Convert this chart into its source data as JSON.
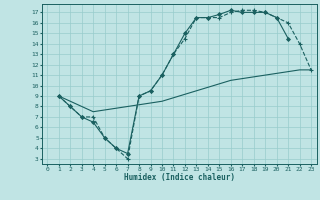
{
  "xlabel": "Humidex (Indice chaleur)",
  "bg_color": "#c0e4e4",
  "grid_color": "#98cccc",
  "line_color": "#1a6060",
  "xlim": [
    -0.5,
    23.5
  ],
  "ylim": [
    2.5,
    17.8
  ],
  "xticks": [
    0,
    1,
    2,
    3,
    4,
    5,
    6,
    7,
    8,
    9,
    10,
    11,
    12,
    13,
    14,
    15,
    16,
    17,
    18,
    19,
    20,
    21,
    22,
    23
  ],
  "yticks": [
    3,
    4,
    5,
    6,
    7,
    8,
    9,
    10,
    11,
    12,
    13,
    14,
    15,
    16,
    17
  ],
  "line1_x": [
    1,
    2,
    3,
    4,
    5,
    6,
    7,
    8,
    9,
    10,
    11,
    12,
    13,
    14,
    15,
    16,
    17,
    18,
    19,
    20,
    21
  ],
  "line1_y": [
    9,
    8,
    7,
    6.5,
    5,
    4,
    3.5,
    9,
    9.5,
    11,
    13,
    15,
    16.5,
    16.5,
    16.8,
    17.2,
    17,
    17,
    17,
    16.5,
    14.5
  ],
  "line2_x": [
    1,
    2,
    3,
    4,
    5,
    6,
    7,
    8,
    9,
    10,
    11,
    12,
    13,
    14,
    15,
    16,
    17,
    18,
    19,
    20,
    21,
    22,
    23
  ],
  "line2_y": [
    9,
    8,
    7,
    7,
    5,
    4,
    3,
    9,
    9.5,
    11,
    13,
    14.5,
    16.5,
    16.5,
    16.5,
    17,
    17.2,
    17.2,
    17,
    16.5,
    16,
    14,
    11.5
  ],
  "line3_x": [
    1,
    4,
    7,
    10,
    13,
    16,
    19,
    22,
    23
  ],
  "line3_y": [
    9,
    7.5,
    8,
    8.5,
    9.5,
    10.5,
    11,
    11.5,
    11.5
  ]
}
